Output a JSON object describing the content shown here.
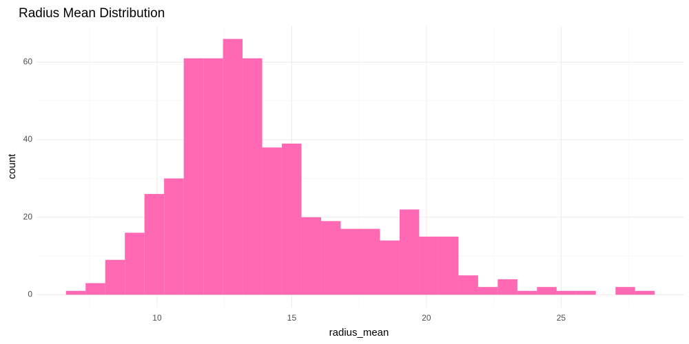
{
  "chart_data": {
    "type": "histogram",
    "title": "Radius Mean Distribution",
    "x_label": "radius_mean",
    "y_label": "count",
    "color": "#ff69b4",
    "grid": true,
    "bins": [
      6.617,
      7.346,
      8.074,
      8.803,
      9.531,
      10.26,
      10.989,
      11.717,
      12.446,
      13.174,
      13.903,
      14.632,
      15.36,
      16.089,
      16.817,
      17.546,
      18.275,
      19.003,
      19.732,
      20.46,
      21.189,
      21.918,
      22.646,
      23.375,
      24.103,
      24.832,
      25.561,
      26.289,
      27.018,
      27.746,
      28.475
    ],
    "counts": [
      1,
      3,
      9,
      16,
      26,
      30,
      61,
      61,
      66,
      61,
      38,
      39,
      20,
      19,
      17,
      17,
      14,
      22,
      15,
      15,
      5,
      2,
      4,
      1,
      2,
      1,
      1,
      0,
      2,
      1
    ],
    "xlim": [
      5.524,
      29.568
    ],
    "ylim": [
      -3.3,
      69.3
    ],
    "xticks": [
      10,
      15,
      20,
      25
    ],
    "yticks": [
      0,
      20,
      40,
      60
    ],
    "xminor": [
      7.5,
      12.5,
      17.5,
      22.5,
      27.5
    ],
    "yminor": [
      10,
      30,
      50
    ]
  }
}
